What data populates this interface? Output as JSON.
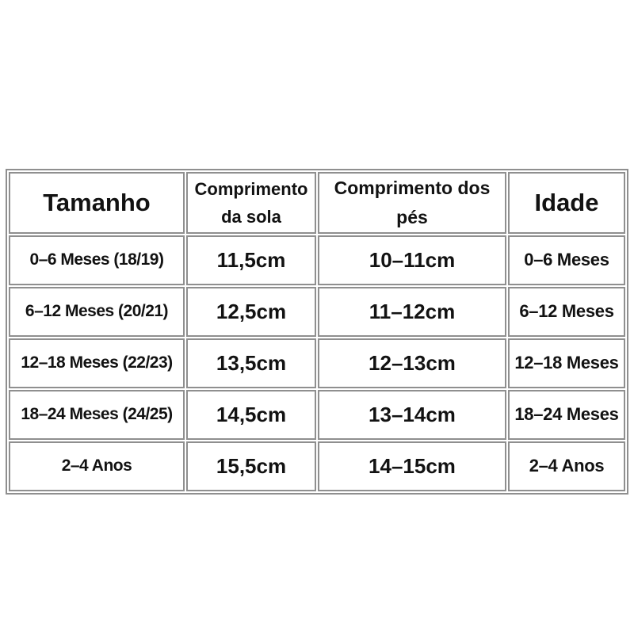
{
  "page": {
    "background_color": "#ffffff",
    "text_color": "#121212",
    "border_color": "#8f8f8f"
  },
  "chart_data": {
    "type": "table",
    "title": "",
    "columns": [
      "Tamanho",
      "Comprimento da sola",
      "Comprimento dos pés",
      "Idade"
    ],
    "header_lines": [
      [
        "Tamanho"
      ],
      [
        "Comprimento",
        "da sola"
      ],
      [
        "Comprimento dos",
        "pés"
      ],
      [
        "Idade"
      ]
    ],
    "rows": [
      [
        "0–6 Meses (18/19)",
        "11,5cm",
        "10–11cm",
        "0–6 Meses"
      ],
      [
        "6–12 Meses (20/21)",
        "12,5cm",
        "11–12cm",
        "6–12 Meses"
      ],
      [
        "12–18 Meses (22/23)",
        "13,5cm",
        "12–13cm",
        "12–18 Meses"
      ],
      [
        "18–24 Meses (24/25)",
        "14,5cm",
        "13–14cm",
        "18–24 Meses"
      ],
      [
        "2–4 Anos",
        "15,5cm",
        "14–15cm",
        "2–4 Anos"
      ]
    ]
  }
}
